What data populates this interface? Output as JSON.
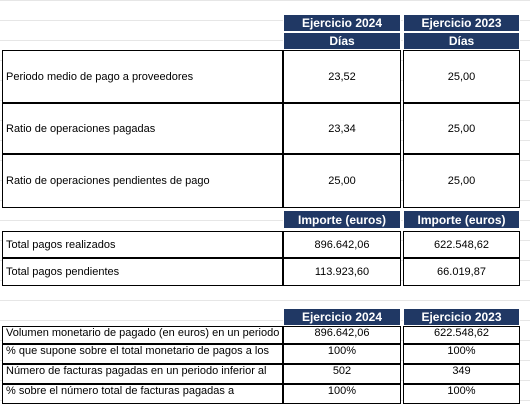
{
  "table1": {
    "header": [
      "Ejercicio 2024",
      "Ejercicio 2023"
    ],
    "subheader": [
      "Días",
      "Días"
    ],
    "rows": [
      [
        "Periodo medio de pago a proveedores",
        "23,52",
        "25,00"
      ],
      [
        "Ratio de operaciones pagadas",
        "23,34",
        "25,00"
      ],
      [
        "Ratio de operaciones pendientes de pago",
        "25,00",
        "25,00"
      ]
    ],
    "subheader2": [
      "Importe (euros)",
      "Importe (euros)"
    ],
    "rows2": [
      [
        "Total pagos realizados",
        "896.642,06",
        "622.548,62"
      ],
      [
        "Total pagos pendientes",
        "113.923,60",
        "66.019,87"
      ]
    ]
  },
  "table2": {
    "header": [
      "Ejercicio 2024",
      "Ejercicio 2023"
    ],
    "rows": [
      [
        "Volumen monetario de pagado (en euros) en un periodo",
        "896.642,06",
        "622.548,62"
      ],
      [
        "% que supone sobre el total monetario de pagos a los",
        "100%",
        "100%"
      ],
      [
        "Número de facturas pagadas en un periodo inferior al",
        "502",
        "349"
      ],
      [
        "% sobre el número total de facturas pagadas a",
        "100%",
        "100%"
      ]
    ]
  }
}
